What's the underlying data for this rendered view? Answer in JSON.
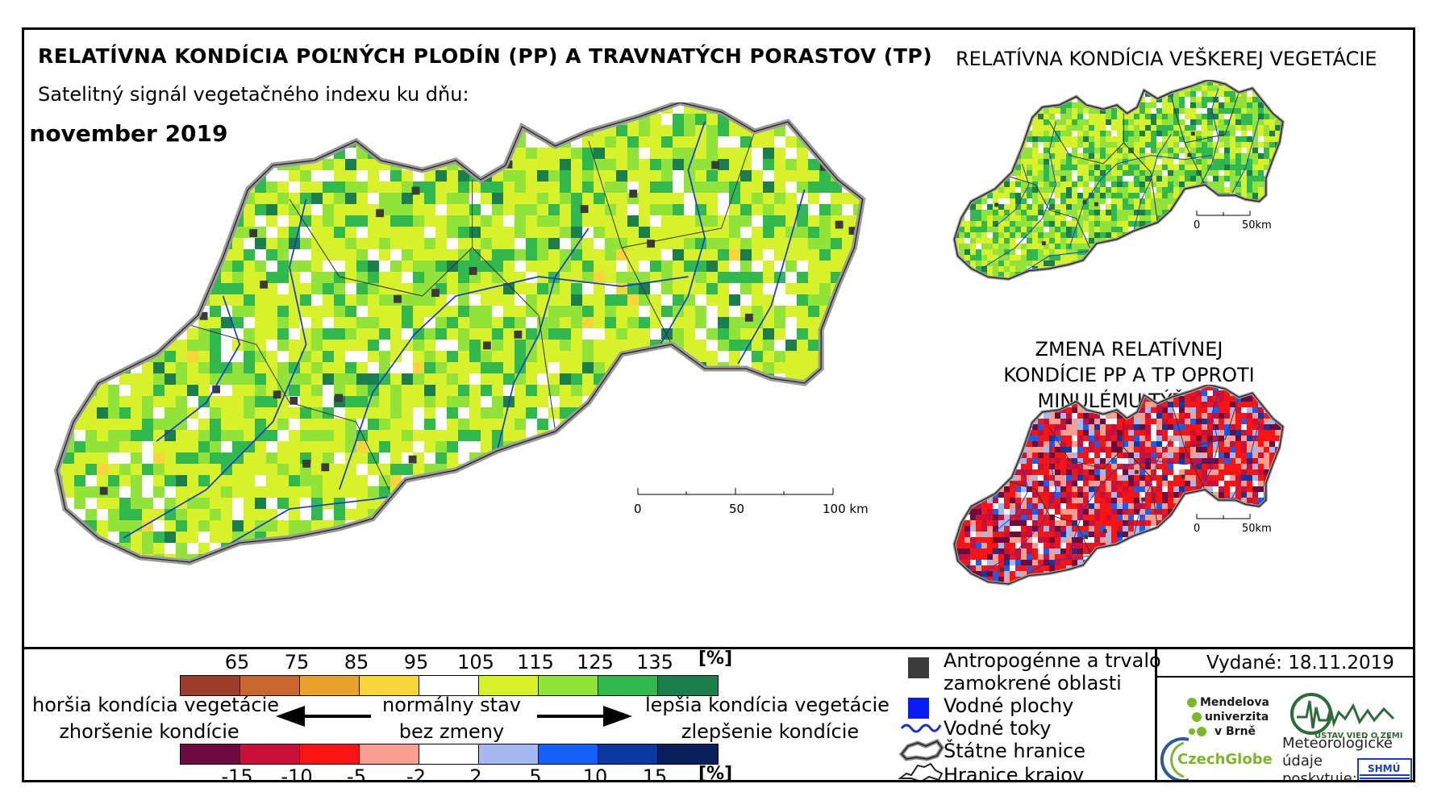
{
  "main_title": "RELATÍVNA KONDÍCIA POĽNÝCH PLODÍN (PP) A TRAVNATÝCH PORASTOV (TP)",
  "subtitle": "Satelitný signál vegetačného indexu ku dňu:",
  "date": ". november 2019",
  "inset_all_title": "RELATÍVNA KONDÍCIA VEŠKEREJ VEGETÁCIE",
  "inset_change_title": "ZMENA RELATÍVNEJ KONDÍCIE PP A TP OPROTI MINULÉMU TÝŽDNI",
  "main_scale": {
    "labels": [
      "0",
      "50",
      "100 km"
    ]
  },
  "inset_scale": {
    "labels": [
      "0",
      "50km"
    ]
  },
  "condition_scale": {
    "ticks": [
      "65",
      "75",
      "85",
      "95",
      "105",
      "115",
      "125",
      "135"
    ],
    "unit": "[%]",
    "colors": [
      "#9c3d2b",
      "#c8682c",
      "#e8a32a",
      "#f8d53a",
      "#ffffff",
      "#d7f22a",
      "#91e33a",
      "#31b84e",
      "#1a7f4c"
    ]
  },
  "change_scale": {
    "ticks": [
      "-15",
      "-10",
      "-5",
      "-2",
      "2",
      "5",
      "10",
      "15"
    ],
    "unit": "[%]",
    "colors": [
      "#6c0a3e",
      "#c8103a",
      "#f91313",
      "#f7a091",
      "#ffffff",
      "#a6b8f0",
      "#1460f5",
      "#0a3aa0",
      "#0a1f5a"
    ]
  },
  "labels": {
    "worse_condition": "horšia kondícia vegetácie",
    "worse_change": "zhoršenie kondície",
    "normal": "normálny stav",
    "no_change": "bez zmeny",
    "better_condition": "lepšia kondícia vegetácie",
    "better_change": "zlepšenie kondície"
  },
  "map_legend": [
    {
      "label": "Antropogénne a trvalo",
      "label2": "zamokrené oblasti",
      "symbol": "dark-square",
      "color": "#3a3a3a"
    },
    {
      "label": "Vodné plochy",
      "symbol": "blue-square",
      "color": "#0a1cf5"
    },
    {
      "label": "Vodné toky",
      "symbol": "river-line",
      "color": "#1a2fd0"
    },
    {
      "label": "Štátne hranice",
      "symbol": "state-border"
    },
    {
      "label": "Hranice krajov",
      "symbol": "region-border"
    }
  ],
  "issued": "Vydané: 18.11.2019",
  "logos": {
    "mendel": [
      "Mendelova",
      "univerzita",
      "v Brně"
    ],
    "czechglobe": "CzechGlobe",
    "ustav": "ÚSTAV VIED O ZEMI",
    "meteo": [
      "Meteorologické",
      "údaje",
      "poskytuje:"
    ],
    "shmu": "SHMÚ"
  },
  "colors": {
    "river": "#1a3ad8",
    "border": "#555555",
    "region_border": "#333333"
  }
}
